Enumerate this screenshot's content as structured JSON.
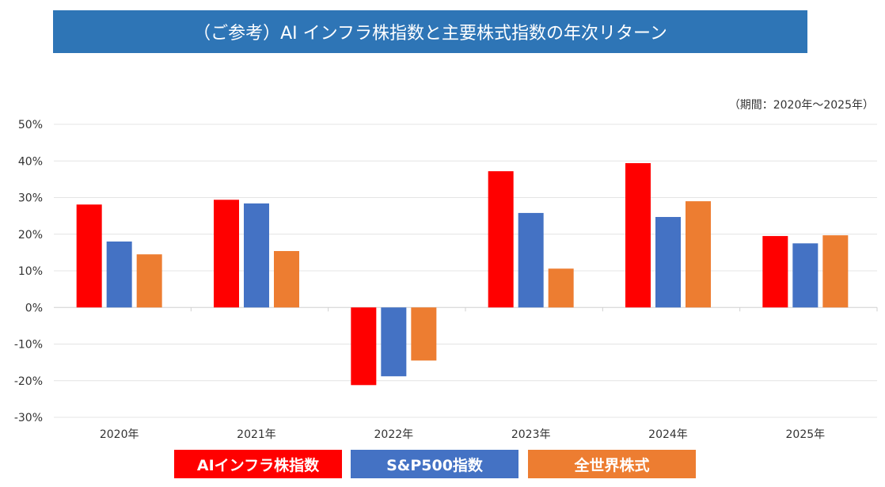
{
  "chart_data": {
    "type": "bar",
    "title": "（ご参考）AI インフラ株指数と主要株式指数の年次リターン",
    "note": "（期間：2020年～2025年）",
    "categories": [
      "2020年",
      "2021年",
      "2022年",
      "2023年",
      "2024年",
      "2025年"
    ],
    "ylim": [
      -30,
      50
    ],
    "yticks": [
      50,
      40,
      30,
      20,
      10,
      0,
      -10,
      -20,
      -30
    ],
    "ytick_labels": [
      "50%",
      "40%",
      "30%",
      "20%",
      "10%",
      "0%",
      "-10%",
      "-20%",
      "-30%"
    ],
    "grid": true,
    "legend_position": "bottom",
    "series": [
      {
        "name": "AIインフラ株指数",
        "color": "#FF0000",
        "values": [
          28.1,
          29.4,
          -21.2,
          37.2,
          39.4,
          19.5
        ]
      },
      {
        "name": "S&P500指数",
        "color": "#4472C4",
        "values": [
          18.0,
          28.4,
          -18.8,
          25.8,
          24.7,
          17.5
        ]
      },
      {
        "name": "全世界株式",
        "color": "#ED7D31",
        "values": [
          14.5,
          15.4,
          -14.5,
          10.6,
          29.0,
          19.7
        ]
      }
    ]
  }
}
